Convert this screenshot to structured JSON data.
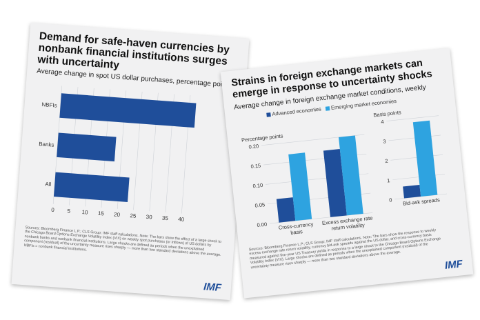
{
  "left": {
    "title": "Demand for safe-haven currencies by nonbank financial institutions surges with uncertainty",
    "subtitle": "Average change in spot US dollar purchases, percentage points, weekly",
    "source": "Sources: Bloomberg Finance L.P.; CLS Group; IMF staff calculations. Note: The bars show the effect of a large shock to the Chicago Board Options Exchange Volatility Index (VIX) on weekly spot purchases (or inflows) of US dollars by nonbank banks and nonbank financial institutions. Large shocks are defined as periods when the unexplained component (residual) of the uncertainty measure rises sharply — more than two standard deviations above the average. NBFIs = nonbank financial institutions.",
    "logo": "IMF",
    "colors": {
      "bar": "#1f4e9a"
    }
  },
  "right": {
    "title": "Strains in foreign exchange markets can emerge in response to uncertainty shocks",
    "subtitle": "Average change in foreign exchange market conditions, weekly",
    "legend": [
      "Advanced economies",
      "Emerging market economies"
    ],
    "source": "Sources: Bloomberg Finance L.P.; CLS Group; IMF staff calculations. Note: The bars show the response to weekly excess exchange rate return volatility, currency bid-ask spreads against the US dollar, and cross-currency basis measured against five-year US Treasury yields in response to a large shock to the Chicago Board Options Exchange Volatility Index (VIX). Large shocks are defined as periods when the unexplained component (residual) of the uncertainty measure rises sharply — more than two standard deviations above the average.",
    "logo": "IMF",
    "colors": {
      "advanced": "#1f4e9a",
      "emerging": "#2ea3e0"
    }
  },
  "chart_data": [
    {
      "type": "bar",
      "orientation": "horizontal",
      "title": "Demand for safe-haven currencies by nonbank financial institutions surges with uncertainty",
      "subtitle": "Average change in spot US dollar purchases, percentage points, weekly",
      "categories": [
        "NBFIs",
        "Banks",
        "All"
      ],
      "values": [
        42,
        18,
        23
      ],
      "xlim": [
        0,
        45
      ],
      "xticks": [
        "0",
        "5",
        "10",
        "15",
        "20",
        "25",
        "30",
        "35",
        "40"
      ]
    },
    {
      "type": "bar",
      "title": "Strains in foreign exchange markets can emerge in response to uncertainty shocks",
      "ylabel": "Percentage points",
      "categories": [
        "Cross-currency basis",
        "Excess exchange rate return volatility"
      ],
      "series": [
        {
          "name": "Advanced economies",
          "values": [
            0.06,
            0.17
          ]
        },
        {
          "name": "Emerging market economies",
          "values": [
            0.17,
            0.2
          ]
        }
      ],
      "ylim": [
        0,
        0.2
      ],
      "yticks": [
        "0.00",
        "0.05",
        "0.10",
        "0.15",
        "0.20"
      ]
    },
    {
      "type": "bar",
      "ylabel": "Basis points",
      "categories": [
        "Bid-ask spreads"
      ],
      "series": [
        {
          "name": "Advanced economies",
          "values": [
            0.6
          ]
        },
        {
          "name": "Emerging market economies",
          "values": [
            3.8
          ]
        }
      ],
      "ylim": [
        0,
        4
      ],
      "yticks": [
        "0",
        "1",
        "2",
        "3",
        "4"
      ]
    }
  ]
}
